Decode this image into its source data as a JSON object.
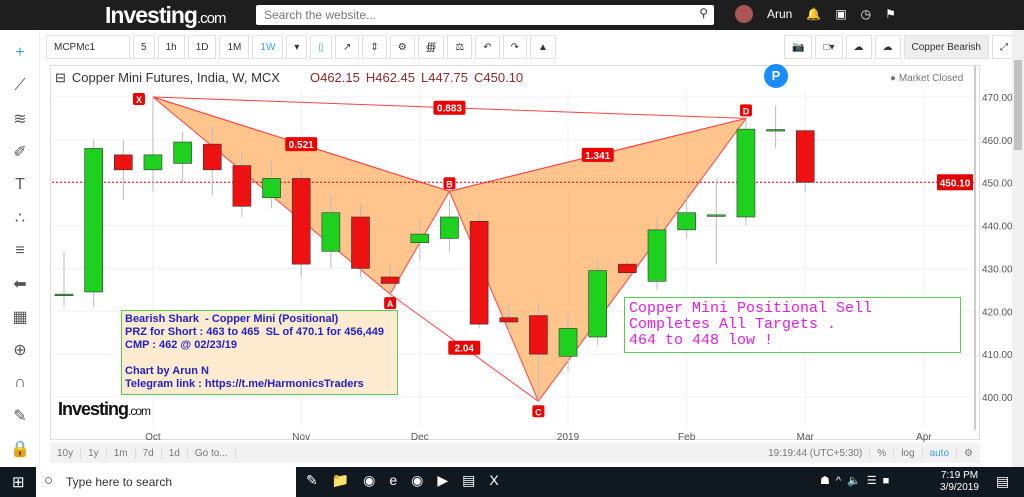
{
  "site": {
    "logo": "Investing",
    "logo_suffix": ".com",
    "search_placeholder": "Search the website...",
    "user": "Arun"
  },
  "toolbar": {
    "symbol": "MCPMc1",
    "intervals": [
      "5",
      "1h",
      "1D",
      "1M",
      "1W"
    ],
    "active_interval": "1W",
    "template": "Copper Bearish"
  },
  "header": {
    "title": "Copper Mini Futures, India, W, MCX",
    "open": "O462.15",
    "high": "H462.45",
    "low": "L447.75",
    "close": "C450.10",
    "status": "Market Closed",
    "p_badge": "P"
  },
  "notes": {
    "left": "Bearish Shark  - Copper Mini (Positional)\nPRZ for Short : 463 to 465  SL of 470.1 for 456,449\nCMP : 462 @ 02/23/19\n\nChart by Arun N\nTelegram link : https://t.me/HarmonicsTraders",
    "right": "Copper Mini Positional Sell\nCompletes All Targets .\n464 to 448 low !"
  },
  "watermark": "Investing",
  "watermark_suffix": ".com",
  "bottom": {
    "ranges": [
      "10y",
      "1y",
      "1m",
      "7d",
      "1d",
      "Go to..."
    ],
    "time": "19:19:44 (UTC+5:30)",
    "opts": [
      "%",
      "log",
      "auto"
    ]
  },
  "taskbar": {
    "search": "Type here to search",
    "time": "7:19 PM",
    "date": "3/9/2019"
  },
  "colors": {
    "up": "#1fd11f",
    "down": "#ee1111",
    "pattern": "#ffb266",
    "last": "#e00000"
  },
  "chart_data": {
    "type": "candlestick",
    "ylim": [
      396,
      476
    ],
    "yticks": [
      400,
      410,
      420,
      430,
      440,
      450,
      460,
      470
    ],
    "last_price": 450.1,
    "xticks": [
      {
        "label": "Oct",
        "i": 3
      },
      {
        "label": "Nov",
        "i": 8
      },
      {
        "label": "Dec",
        "i": 12
      },
      {
        "label": "2019",
        "i": 17
      },
      {
        "label": "Feb",
        "i": 21
      },
      {
        "label": "Mar",
        "i": 25
      },
      {
        "label": "Apr",
        "i": 29
      }
    ],
    "candles": [
      [
        424,
        424,
        434,
        421
      ],
      [
        424.5,
        458,
        460,
        421
      ],
      [
        456.5,
        453,
        460,
        446
      ],
      [
        453,
        456.5,
        470,
        448
      ],
      [
        454.5,
        459.5,
        462,
        450
      ],
      [
        459,
        453,
        463,
        447
      ],
      [
        454,
        444.5,
        457,
        442
      ],
      [
        446.5,
        451,
        455,
        444
      ],
      [
        451,
        431,
        453,
        428
      ],
      [
        434,
        443,
        447,
        430
      ],
      [
        442,
        430,
        445,
        428
      ],
      [
        428,
        426.5,
        431,
        424
      ],
      [
        436,
        438,
        441,
        432
      ],
      [
        437,
        442,
        446,
        434
      ],
      [
        441,
        417,
        443,
        416
      ],
      [
        418.5,
        417.5,
        422,
        415
      ],
      [
        419,
        410,
        422,
        399
      ],
      [
        409.5,
        416,
        419,
        406
      ],
      [
        414,
        429.5,
        432,
        412
      ],
      [
        431,
        429,
        432,
        428
      ],
      [
        427,
        439,
        442,
        425
      ],
      [
        439,
        443,
        448,
        437
      ],
      [
        442.5,
        442.5,
        451,
        431
      ],
      [
        442,
        462.5,
        465,
        440
      ],
      [
        462.2,
        462.4,
        468,
        458
      ],
      [
        462.15,
        450.1,
        462.45,
        447.75
      ]
    ],
    "pattern": {
      "name": "Bearish Shark",
      "points": [
        {
          "label": "X",
          "i": 3,
          "price": 470
        },
        {
          "label": "A",
          "i": 11,
          "price": 424
        },
        {
          "label": "B",
          "i": 13,
          "price": 448
        },
        {
          "label": "C",
          "i": 16,
          "price": 399
        },
        {
          "label": "D",
          "i": 23,
          "price": 465
        }
      ],
      "ratios": [
        {
          "label": "0.521",
          "from": "X",
          "to": "B"
        },
        {
          "label": "2.04",
          "from": "A",
          "to": "C"
        },
        {
          "label": "1.341",
          "from": "B",
          "to": "D"
        },
        {
          "label": "0.883",
          "from": "X",
          "to": "D"
        }
      ]
    }
  }
}
